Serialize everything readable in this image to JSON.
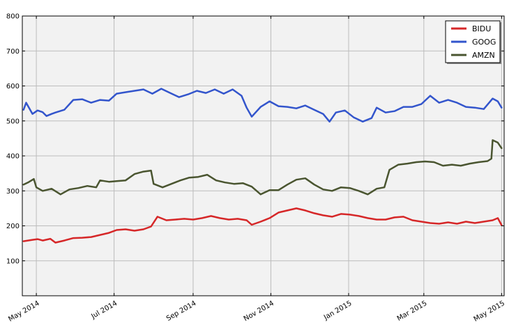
{
  "chart_data": {
    "type": "line",
    "title": "",
    "xlabel": "",
    "ylabel": "",
    "xlim": [
      "2014-04-20",
      "2015-05-03"
    ],
    "ylim": [
      0,
      800
    ],
    "grid": true,
    "legend_position": "top-right",
    "yticks": [
      {
        "value": 100,
        "label": "100"
      },
      {
        "value": 200,
        "label": "200"
      },
      {
        "value": 300,
        "label": "300"
      },
      {
        "value": 400,
        "label": "400"
      },
      {
        "value": 500,
        "label": "500"
      },
      {
        "value": 600,
        "label": "600"
      },
      {
        "value": 700,
        "label": "700"
      },
      {
        "value": 800,
        "label": "800"
      }
    ],
    "xticks": [
      {
        "date": "2014-05-01",
        "label": "May 2014"
      },
      {
        "date": "2014-07-01",
        "label": "Jul 2014"
      },
      {
        "date": "2014-09-01",
        "label": "Sep 2014"
      },
      {
        "date": "2014-11-01",
        "label": "Nov 2014"
      },
      {
        "date": "2015-01-01",
        "label": "Jan 2015"
      },
      {
        "date": "2015-03-01",
        "label": "Mar 2015"
      },
      {
        "date": "2015-05-01",
        "label": "May 2015"
      }
    ],
    "series": [
      {
        "name": "BIDU",
        "color": "#d62728",
        "points": [
          [
            "2014-04-21",
            156
          ],
          [
            "2014-04-28",
            160
          ],
          [
            "2014-05-02",
            162
          ],
          [
            "2014-05-06",
            158
          ],
          [
            "2014-05-12",
            163
          ],
          [
            "2014-05-16",
            152
          ],
          [
            "2014-05-23",
            158
          ],
          [
            "2014-05-30",
            165
          ],
          [
            "2014-06-06",
            166
          ],
          [
            "2014-06-13",
            168
          ],
          [
            "2014-06-20",
            174
          ],
          [
            "2014-06-27",
            180
          ],
          [
            "2014-07-03",
            188
          ],
          [
            "2014-07-10",
            190
          ],
          [
            "2014-07-17",
            186
          ],
          [
            "2014-07-24",
            190
          ],
          [
            "2014-07-30",
            198
          ],
          [
            "2014-08-04",
            226
          ],
          [
            "2014-08-11",
            216
          ],
          [
            "2014-08-18",
            218
          ],
          [
            "2014-08-25",
            220
          ],
          [
            "2014-09-01",
            218
          ],
          [
            "2014-09-08",
            222
          ],
          [
            "2014-09-15",
            228
          ],
          [
            "2014-09-22",
            222
          ],
          [
            "2014-09-29",
            218
          ],
          [
            "2014-10-06",
            220
          ],
          [
            "2014-10-13",
            216
          ],
          [
            "2014-10-17",
            203
          ],
          [
            "2014-10-24",
            212
          ],
          [
            "2014-10-31",
            222
          ],
          [
            "2014-11-07",
            238
          ],
          [
            "2014-11-14",
            244
          ],
          [
            "2014-11-21",
            250
          ],
          [
            "2014-11-28",
            244
          ],
          [
            "2014-12-05",
            236
          ],
          [
            "2014-12-12",
            230
          ],
          [
            "2014-12-19",
            226
          ],
          [
            "2014-12-26",
            234
          ],
          [
            "2015-01-02",
            232
          ],
          [
            "2015-01-09",
            228
          ],
          [
            "2015-01-16",
            222
          ],
          [
            "2015-01-23",
            218
          ],
          [
            "2015-01-30",
            218
          ],
          [
            "2015-02-06",
            224
          ],
          [
            "2015-02-13",
            226
          ],
          [
            "2015-02-20",
            216
          ],
          [
            "2015-02-27",
            212
          ],
          [
            "2015-03-06",
            208
          ],
          [
            "2015-03-13",
            206
          ],
          [
            "2015-03-20",
            210
          ],
          [
            "2015-03-27",
            206
          ],
          [
            "2015-04-03",
            212
          ],
          [
            "2015-04-10",
            208
          ],
          [
            "2015-04-17",
            212
          ],
          [
            "2015-04-24",
            216
          ],
          [
            "2015-04-28",
            222
          ],
          [
            "2015-05-01",
            202
          ]
        ]
      },
      {
        "name": "GOOG",
        "color": "#3355cc",
        "points": [
          [
            "2014-04-21",
            532
          ],
          [
            "2014-04-23",
            552
          ],
          [
            "2014-04-28",
            520
          ],
          [
            "2014-05-02",
            530
          ],
          [
            "2014-05-06",
            525
          ],
          [
            "2014-05-09",
            514
          ],
          [
            "2014-05-13",
            520
          ],
          [
            "2014-05-16",
            524
          ],
          [
            "2014-05-23",
            532
          ],
          [
            "2014-05-30",
            560
          ],
          [
            "2014-06-06",
            562
          ],
          [
            "2014-06-13",
            552
          ],
          [
            "2014-06-20",
            560
          ],
          [
            "2014-06-27",
            558
          ],
          [
            "2014-07-03",
            578
          ],
          [
            "2014-07-10",
            582
          ],
          [
            "2014-07-17",
            586
          ],
          [
            "2014-07-24",
            590
          ],
          [
            "2014-07-31",
            578
          ],
          [
            "2014-08-07",
            592
          ],
          [
            "2014-08-14",
            580
          ],
          [
            "2014-08-21",
            568
          ],
          [
            "2014-08-28",
            576
          ],
          [
            "2014-09-04",
            586
          ],
          [
            "2014-09-11",
            580
          ],
          [
            "2014-09-18",
            590
          ],
          [
            "2014-09-25",
            578
          ],
          [
            "2014-10-02",
            590
          ],
          [
            "2014-10-09",
            572
          ],
          [
            "2014-10-13",
            538
          ],
          [
            "2014-10-17",
            512
          ],
          [
            "2014-10-24",
            540
          ],
          [
            "2014-10-31",
            556
          ],
          [
            "2014-11-07",
            542
          ],
          [
            "2014-11-14",
            540
          ],
          [
            "2014-11-21",
            536
          ],
          [
            "2014-11-28",
            544
          ],
          [
            "2014-12-05",
            532
          ],
          [
            "2014-12-12",
            520
          ],
          [
            "2014-12-17",
            498
          ],
          [
            "2014-12-22",
            524
          ],
          [
            "2014-12-29",
            530
          ],
          [
            "2015-01-05",
            510
          ],
          [
            "2015-01-12",
            498
          ],
          [
            "2015-01-19",
            508
          ],
          [
            "2015-01-23",
            538
          ],
          [
            "2015-01-30",
            524
          ],
          [
            "2015-02-06",
            528
          ],
          [
            "2015-02-13",
            540
          ],
          [
            "2015-02-20",
            540
          ],
          [
            "2015-02-27",
            548
          ],
          [
            "2015-03-06",
            572
          ],
          [
            "2015-03-13",
            552
          ],
          [
            "2015-03-20",
            560
          ],
          [
            "2015-03-27",
            552
          ],
          [
            "2015-04-03",
            540
          ],
          [
            "2015-04-10",
            538
          ],
          [
            "2015-04-17",
            534
          ],
          [
            "2015-04-24",
            564
          ],
          [
            "2015-04-28",
            556
          ],
          [
            "2015-05-01",
            538
          ]
        ]
      },
      {
        "name": "AMZN",
        "color": "#4a5530",
        "points": [
          [
            "2014-04-21",
            318
          ],
          [
            "2014-04-25",
            325
          ],
          [
            "2014-04-29",
            334
          ],
          [
            "2014-05-01",
            310
          ],
          [
            "2014-05-06",
            300
          ],
          [
            "2014-05-13",
            306
          ],
          [
            "2014-05-20",
            290
          ],
          [
            "2014-05-27",
            304
          ],
          [
            "2014-06-03",
            308
          ],
          [
            "2014-06-10",
            314
          ],
          [
            "2014-06-17",
            310
          ],
          [
            "2014-06-20",
            330
          ],
          [
            "2014-06-27",
            326
          ],
          [
            "2014-07-03",
            328
          ],
          [
            "2014-07-10",
            330
          ],
          [
            "2014-07-17",
            348
          ],
          [
            "2014-07-24",
            355
          ],
          [
            "2014-07-30",
            358
          ],
          [
            "2014-08-01",
            320
          ],
          [
            "2014-08-08",
            310
          ],
          [
            "2014-08-15",
            320
          ],
          [
            "2014-08-22",
            330
          ],
          [
            "2014-08-29",
            338
          ],
          [
            "2014-09-05",
            340
          ],
          [
            "2014-09-12",
            346
          ],
          [
            "2014-09-19",
            330
          ],
          [
            "2014-09-26",
            324
          ],
          [
            "2014-10-03",
            320
          ],
          [
            "2014-10-10",
            322
          ],
          [
            "2014-10-17",
            312
          ],
          [
            "2014-10-24",
            290
          ],
          [
            "2014-10-31",
            302
          ],
          [
            "2014-11-07",
            302
          ],
          [
            "2014-11-14",
            318
          ],
          [
            "2014-11-21",
            332
          ],
          [
            "2014-11-28",
            336
          ],
          [
            "2014-12-05",
            318
          ],
          [
            "2014-12-12",
            304
          ],
          [
            "2014-12-19",
            300
          ],
          [
            "2014-12-26",
            310
          ],
          [
            "2015-01-02",
            308
          ],
          [
            "2015-01-09",
            300
          ],
          [
            "2015-01-16",
            290
          ],
          [
            "2015-01-23",
            306
          ],
          [
            "2015-01-29",
            310
          ],
          [
            "2015-02-02",
            360
          ],
          [
            "2015-02-09",
            375
          ],
          [
            "2015-02-16",
            378
          ],
          [
            "2015-02-23",
            382
          ],
          [
            "2015-03-02",
            384
          ],
          [
            "2015-03-09",
            382
          ],
          [
            "2015-03-16",
            372
          ],
          [
            "2015-03-23",
            375
          ],
          [
            "2015-03-30",
            372
          ],
          [
            "2015-04-06",
            378
          ],
          [
            "2015-04-13",
            382
          ],
          [
            "2015-04-20",
            385
          ],
          [
            "2015-04-23",
            392
          ],
          [
            "2015-04-24",
            445
          ],
          [
            "2015-04-28",
            438
          ],
          [
            "2015-05-01",
            422
          ]
        ]
      }
    ]
  }
}
